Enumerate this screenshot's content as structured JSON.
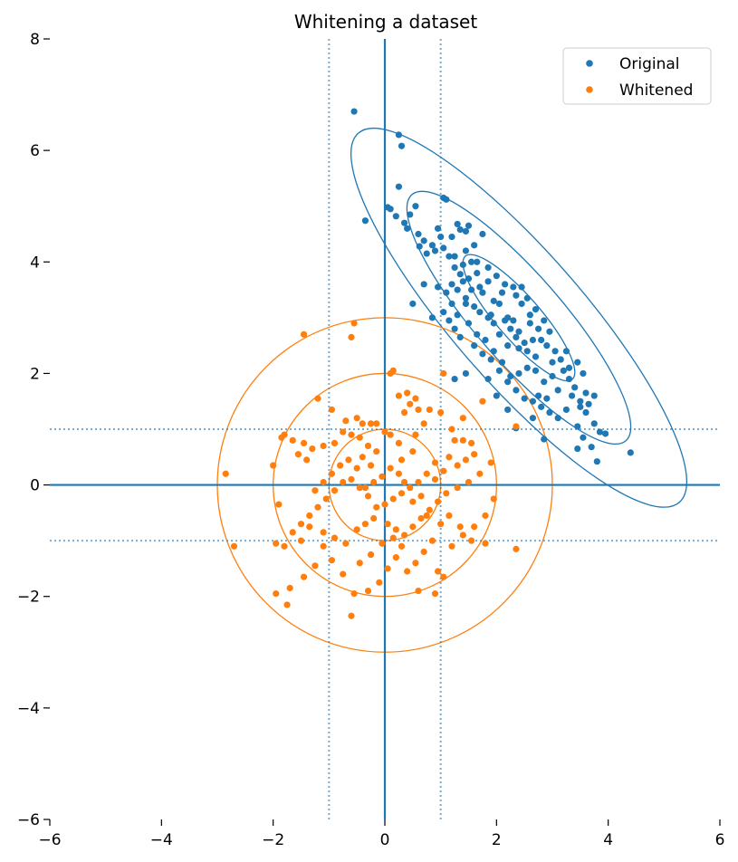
{
  "chart_data": {
    "type": "scatter",
    "title": "Whitening a dataset",
    "xlabel": "",
    "ylabel": "",
    "xlim": [
      -6,
      6
    ],
    "ylim": [
      -6,
      8
    ],
    "xticks": [
      -6,
      -4,
      -2,
      0,
      2,
      4,
      6
    ],
    "yticks": [
      -6,
      -4,
      -2,
      0,
      2,
      4,
      6,
      8
    ],
    "grid": false,
    "legend": "top-right",
    "axis_lines": {
      "x": 0,
      "y": 0,
      "color": "#1f77b4"
    },
    "reference_lines": {
      "x": [
        -1,
        1
      ],
      "y": [
        -1,
        1
      ],
      "style": "dotted",
      "color": "#1f77b4"
    },
    "series": [
      {
        "name": "Original",
        "color": "#1f77b4",
        "ellipse": {
          "center": [
            2.4,
            3.0
          ],
          "axes_1sigma": [
            1.46,
            0.39
          ],
          "angle_deg": -49,
          "sigmas": [
            1,
            2,
            3
          ]
        },
        "points": [
          [
            -0.55,
            6.7
          ],
          [
            0.25,
            6.28
          ],
          [
            0.3,
            6.08
          ],
          [
            -0.35,
            4.74
          ],
          [
            0.05,
            4.98
          ],
          [
            0.1,
            4.95
          ],
          [
            0.2,
            4.82
          ],
          [
            0.25,
            5.35
          ],
          [
            0.45,
            4.85
          ],
          [
            0.55,
            5.0
          ],
          [
            0.4,
            4.6
          ],
          [
            0.35,
            4.7
          ],
          [
            0.6,
            4.5
          ],
          [
            0.7,
            4.38
          ],
          [
            0.85,
            4.3
          ],
          [
            0.95,
            4.6
          ],
          [
            1.05,
            5.15
          ],
          [
            1.1,
            5.12
          ],
          [
            0.9,
            4.2
          ],
          [
            0.75,
            4.15
          ],
          [
            0.62,
            4.28
          ],
          [
            1.0,
            4.45
          ],
          [
            1.2,
            4.45
          ],
          [
            1.3,
            4.68
          ],
          [
            1.35,
            4.58
          ],
          [
            1.5,
            4.65
          ],
          [
            1.45,
            4.55
          ],
          [
            1.6,
            4.3
          ],
          [
            1.75,
            4.5
          ],
          [
            1.55,
            4.0
          ],
          [
            1.4,
            3.95
          ],
          [
            1.35,
            3.78
          ],
          [
            1.25,
            3.9
          ],
          [
            1.15,
            4.1
          ],
          [
            1.05,
            4.25
          ],
          [
            1.2,
            3.6
          ],
          [
            1.1,
            3.45
          ],
          [
            0.95,
            3.55
          ],
          [
            0.7,
            3.6
          ],
          [
            0.5,
            3.25
          ],
          [
            1.45,
            3.35
          ],
          [
            1.6,
            3.2
          ],
          [
            1.75,
            3.45
          ],
          [
            1.85,
            3.65
          ],
          [
            1.7,
            3.55
          ],
          [
            1.95,
            3.3
          ],
          [
            2.05,
            3.25
          ],
          [
            1.9,
            3.05
          ],
          [
            2.15,
            2.95
          ],
          [
            2.2,
            3.0
          ],
          [
            2.35,
            3.4
          ],
          [
            2.55,
            3.35
          ],
          [
            2.45,
            3.55
          ],
          [
            2.6,
            3.05
          ],
          [
            2.7,
            3.15
          ],
          [
            2.85,
            2.95
          ],
          [
            2.95,
            2.75
          ],
          [
            2.75,
            2.8
          ],
          [
            2.65,
            2.6
          ],
          [
            2.5,
            2.55
          ],
          [
            2.35,
            2.65
          ],
          [
            2.25,
            2.8
          ],
          [
            2.4,
            2.45
          ],
          [
            2.55,
            2.4
          ],
          [
            2.7,
            2.3
          ],
          [
            2.9,
            2.5
          ],
          [
            3.05,
            2.4
          ],
          [
            3.15,
            2.25
          ],
          [
            3.3,
            2.1
          ],
          [
            3.25,
            2.4
          ],
          [
            3.45,
            2.2
          ],
          [
            3.55,
            2.0
          ],
          [
            3.4,
            1.75
          ],
          [
            3.6,
            1.65
          ],
          [
            3.75,
            1.6
          ],
          [
            3.65,
            1.45
          ],
          [
            3.5,
            1.5
          ],
          [
            3.3,
            1.9
          ],
          [
            3.1,
            1.7
          ],
          [
            3.0,
            1.95
          ],
          [
            2.85,
            1.85
          ],
          [
            2.7,
            2.05
          ],
          [
            2.55,
            2.1
          ],
          [
            2.4,
            2.0
          ],
          [
            2.25,
            1.95
          ],
          [
            2.1,
            2.2
          ],
          [
            1.95,
            2.4
          ],
          [
            1.8,
            2.6
          ],
          [
            1.65,
            2.7
          ],
          [
            1.5,
            2.9
          ],
          [
            1.35,
            2.65
          ],
          [
            1.25,
            2.8
          ],
          [
            1.15,
            2.95
          ],
          [
            1.05,
            3.1
          ],
          [
            1.3,
            3.05
          ],
          [
            1.45,
            3.25
          ],
          [
            1.6,
            2.5
          ],
          [
            1.75,
            2.35
          ],
          [
            1.9,
            2.25
          ],
          [
            2.05,
            2.05
          ],
          [
            2.2,
            1.85
          ],
          [
            2.35,
            1.7
          ],
          [
            2.5,
            1.55
          ],
          [
            2.65,
            1.5
          ],
          [
            2.8,
            1.4
          ],
          [
            2.95,
            1.3
          ],
          [
            3.1,
            1.2
          ],
          [
            3.25,
            1.35
          ],
          [
            3.45,
            1.05
          ],
          [
            3.6,
            1.3
          ],
          [
            3.75,
            1.1
          ],
          [
            3.85,
            0.95
          ],
          [
            3.95,
            0.92
          ],
          [
            3.55,
            0.85
          ],
          [
            3.7,
            0.68
          ],
          [
            3.45,
            0.65
          ],
          [
            3.8,
            0.42
          ],
          [
            2.65,
            1.2
          ],
          [
            2.85,
            0.82
          ],
          [
            2.35,
            1.02
          ],
          [
            2.75,
            1.6
          ],
          [
            2.9,
            1.55
          ],
          [
            2.2,
            2.5
          ],
          [
            2.05,
            2.7
          ],
          [
            1.95,
            2.9
          ],
          [
            1.85,
            3.0
          ],
          [
            1.7,
            3.1
          ],
          [
            1.55,
            3.5
          ],
          [
            1.4,
            3.65
          ],
          [
            1.3,
            3.5
          ],
          [
            1.25,
            4.1
          ],
          [
            1.45,
            4.2
          ],
          [
            1.65,
            4.0
          ],
          [
            1.85,
            3.9
          ],
          [
            2.0,
            3.75
          ],
          [
            2.15,
            3.6
          ],
          [
            2.3,
            3.55
          ],
          [
            2.1,
            3.45
          ],
          [
            2.45,
            3.25
          ],
          [
            2.6,
            2.9
          ],
          [
            2.8,
            2.6
          ],
          [
            3.0,
            2.2
          ],
          [
            3.2,
            2.05
          ],
          [
            3.35,
            1.6
          ],
          [
            3.5,
            1.4
          ],
          [
            2.2,
            1.35
          ],
          [
            2.0,
            1.6
          ],
          [
            1.85,
            1.9
          ],
          [
            1.45,
            2.0
          ],
          [
            1.25,
            1.9
          ],
          [
            0.85,
            3.0
          ],
          [
            1.5,
            3.7
          ],
          [
            1.65,
            3.8
          ],
          [
            2.4,
            2.75
          ],
          [
            2.3,
            2.95
          ],
          [
            1.2,
            3.25
          ],
          [
            4.4,
            0.58
          ]
        ]
      },
      {
        "name": "Whitened",
        "color": "#ff7f0e",
        "circles": {
          "center": [
            0,
            0
          ],
          "radii": [
            1,
            2,
            3
          ]
        },
        "points": [
          [
            -0.55,
            2.9
          ],
          [
            -0.6,
            2.65
          ],
          [
            -1.45,
            2.7
          ],
          [
            -1.2,
            1.55
          ],
          [
            -0.95,
            1.35
          ],
          [
            -0.7,
            1.15
          ],
          [
            -0.5,
            1.2
          ],
          [
            -0.4,
            1.1
          ],
          [
            -0.25,
            1.1
          ],
          [
            -0.15,
            1.1
          ],
          [
            -1.8,
            0.9
          ],
          [
            -1.85,
            0.85
          ],
          [
            -1.65,
            0.8
          ],
          [
            -1.45,
            0.75
          ],
          [
            -1.3,
            0.65
          ],
          [
            -1.1,
            0.7
          ],
          [
            -0.9,
            0.75
          ],
          [
            -0.75,
            0.95
          ],
          [
            -0.6,
            0.9
          ],
          [
            -0.45,
            0.85
          ],
          [
            -0.3,
            0.7
          ],
          [
            -0.15,
            0.6
          ],
          [
            0.0,
            0.95
          ],
          [
            0.1,
            0.9
          ],
          [
            0.25,
            0.75
          ],
          [
            0.35,
            1.3
          ],
          [
            0.45,
            1.45
          ],
          [
            0.6,
            1.35
          ],
          [
            0.8,
            1.35
          ],
          [
            0.1,
            2.0
          ],
          [
            0.15,
            2.05
          ],
          [
            0.25,
            1.6
          ],
          [
            0.4,
            1.65
          ],
          [
            0.55,
            1.55
          ],
          [
            1.0,
            1.3
          ],
          [
            1.2,
            1.0
          ],
          [
            1.4,
            0.8
          ],
          [
            1.55,
            0.75
          ],
          [
            1.6,
            0.55
          ],
          [
            1.45,
            0.45
          ],
          [
            1.3,
            0.35
          ],
          [
            1.15,
            0.5
          ],
          [
            0.9,
            0.4
          ],
          [
            0.75,
            0.2
          ],
          [
            0.6,
            0.05
          ],
          [
            0.45,
            -0.05
          ],
          [
            0.3,
            -0.15
          ],
          [
            0.15,
            -0.25
          ],
          [
            0.0,
            -0.35
          ],
          [
            -0.15,
            -0.4
          ],
          [
            -0.3,
            -0.2
          ],
          [
            -0.45,
            -0.05
          ],
          [
            -0.6,
            0.1
          ],
          [
            -0.75,
            0.05
          ],
          [
            -0.9,
            -0.1
          ],
          [
            -1.05,
            -0.25
          ],
          [
            -1.2,
            -0.4
          ],
          [
            -1.35,
            -0.55
          ],
          [
            -1.5,
            -0.7
          ],
          [
            -1.65,
            -0.85
          ],
          [
            -1.8,
            -1.1
          ],
          [
            -1.9,
            -0.35
          ],
          [
            -2.0,
            0.35
          ],
          [
            -2.85,
            0.2
          ],
          [
            -2.7,
            -1.1
          ],
          [
            -1.95,
            -1.05
          ],
          [
            -1.5,
            -1.0
          ],
          [
            -1.35,
            -0.75
          ],
          [
            -1.1,
            -0.85
          ],
          [
            -0.9,
            -0.95
          ],
          [
            -0.7,
            -1.05
          ],
          [
            -0.5,
            -0.8
          ],
          [
            -0.35,
            -0.7
          ],
          [
            -0.2,
            -0.6
          ],
          [
            0.05,
            -0.7
          ],
          [
            0.2,
            -0.8
          ],
          [
            0.35,
            -0.9
          ],
          [
            0.5,
            -0.75
          ],
          [
            0.65,
            -0.6
          ],
          [
            0.8,
            -0.45
          ],
          [
            0.95,
            -0.3
          ],
          [
            1.1,
            -0.15
          ],
          [
            1.3,
            -0.05
          ],
          [
            1.5,
            0.05
          ],
          [
            1.7,
            0.2
          ],
          [
            1.9,
            0.4
          ],
          [
            1.95,
            -0.25
          ],
          [
            1.8,
            -0.55
          ],
          [
            1.6,
            -0.75
          ],
          [
            1.4,
            -0.9
          ],
          [
            1.2,
            -1.1
          ],
          [
            1.0,
            -0.7
          ],
          [
            0.85,
            -1.0
          ],
          [
            0.7,
            -1.2
          ],
          [
            0.55,
            -1.4
          ],
          [
            0.4,
            -1.55
          ],
          [
            0.2,
            -1.3
          ],
          [
            0.05,
            -1.5
          ],
          [
            -0.1,
            -1.75
          ],
          [
            -0.3,
            -1.9
          ],
          [
            -0.55,
            -1.95
          ],
          [
            -0.75,
            -1.6
          ],
          [
            -0.95,
            -1.35
          ],
          [
            -1.1,
            -1.1
          ],
          [
            -1.25,
            -1.45
          ],
          [
            -1.45,
            -1.65
          ],
          [
            -1.7,
            -1.85
          ],
          [
            -1.75,
            -2.15
          ],
          [
            -1.95,
            -1.95
          ],
          [
            -0.6,
            -2.35
          ],
          [
            0.6,
            -1.9
          ],
          [
            0.9,
            -1.95
          ],
          [
            0.95,
            -1.55
          ],
          [
            1.05,
            -1.65
          ],
          [
            2.35,
            -1.15
          ],
          [
            1.8,
            -1.05
          ],
          [
            1.55,
            -1.0
          ],
          [
            1.35,
            -0.75
          ],
          [
            1.15,
            -0.55
          ],
          [
            2.35,
            1.05
          ],
          [
            1.75,
            1.5
          ],
          [
            1.05,
            2.0
          ],
          [
            0.7,
            1.1
          ],
          [
            0.55,
            0.9
          ],
          [
            0.5,
            0.6
          ],
          [
            0.3,
            0.45
          ],
          [
            0.1,
            0.3
          ],
          [
            -0.05,
            0.15
          ],
          [
            -0.2,
            0.05
          ],
          [
            -0.35,
            -0.05
          ],
          [
            -0.5,
            0.3
          ],
          [
            -0.65,
            0.45
          ],
          [
            -0.8,
            0.35
          ],
          [
            -0.95,
            0.2
          ],
          [
            -1.1,
            0.05
          ],
          [
            -1.25,
            -0.1
          ],
          [
            -1.4,
            0.45
          ],
          [
            -1.55,
            0.55
          ],
          [
            0.25,
            0.2
          ],
          [
            0.35,
            0.05
          ],
          [
            0.5,
            -0.3
          ],
          [
            0.65,
            -0.2
          ],
          [
            0.75,
            -0.55
          ],
          [
            0.9,
            0.1
          ],
          [
            1.05,
            0.25
          ],
          [
            -0.25,
            0.35
          ],
          [
            -0.4,
            0.5
          ],
          [
            0.15,
            -0.95
          ],
          [
            -0.05,
            -1.05
          ],
          [
            -0.25,
            -1.25
          ],
          [
            -0.45,
            -1.4
          ],
          [
            0.3,
            -1.1
          ],
          [
            1.25,
            0.8
          ],
          [
            1.4,
            1.2
          ]
        ]
      }
    ]
  }
}
